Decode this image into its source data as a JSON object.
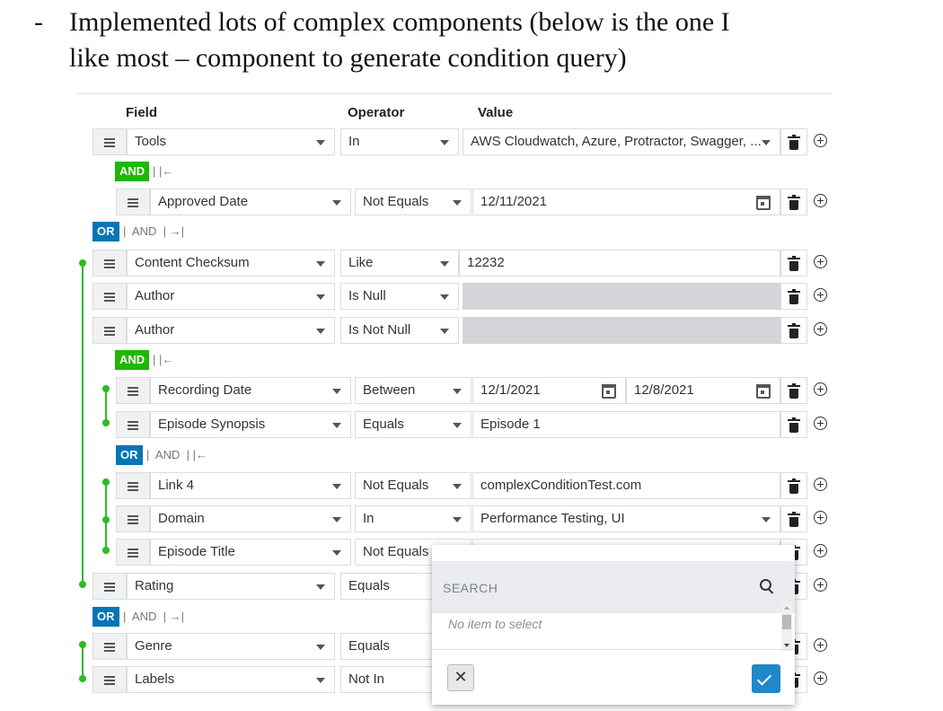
{
  "heading": {
    "dash": "-",
    "line1": "Implemented lots of complex components (below is the one I",
    "line2": "like most – component to generate condition query)"
  },
  "columns": {
    "field": "Field",
    "operator": "Operator",
    "value": "Value"
  },
  "rows": [
    {
      "field": "Tools",
      "operator": "In",
      "value": "AWS Cloudwatch, Azure, Protractor, Swagger, ..."
    },
    {
      "field": "Approved Date",
      "operator": "Not Equals",
      "value": "12/11/2021"
    },
    {
      "field": "Content Checksum",
      "operator": "Like",
      "value": "12232"
    },
    {
      "field": "Author",
      "operator": "Is Null",
      "value": ""
    },
    {
      "field": "Author",
      "operator": "Is Not Null",
      "value": ""
    },
    {
      "field": "Recording Date",
      "operator": "Between",
      "value": "12/1/2021",
      "value2": "12/8/2021"
    },
    {
      "field": "Episode Synopsis",
      "operator": "Equals",
      "value": "Episode 1"
    },
    {
      "field": "Link 4",
      "operator": "Not Equals",
      "value": "complexConditionTest.com"
    },
    {
      "field": "Domain",
      "operator": "In",
      "value": "Performance Testing, UI"
    },
    {
      "field": "Episode Title",
      "operator": "Not Equals",
      "value": ""
    },
    {
      "field": "Rating",
      "operator": "Equals",
      "value": ""
    },
    {
      "field": "Genre",
      "operator": "Equals",
      "value": ""
    },
    {
      "field": "Labels",
      "operator": "Not In",
      "value": ""
    }
  ],
  "connectors": {
    "and_badge": "AND",
    "or_badge": "OR",
    "and_text": "AND",
    "sep": "|",
    "outdent_arrow": "|←",
    "indent_arrow": "→|"
  },
  "popup": {
    "search_placeholder": "SEARCH",
    "empty_text": "No item to select",
    "cancel_symbol": "✕"
  },
  "colors": {
    "and_green": "#1eb800",
    "or_blue": "#0077b6",
    "group_line": "#2bbb22",
    "confirm_blue": "#1f88c9"
  }
}
